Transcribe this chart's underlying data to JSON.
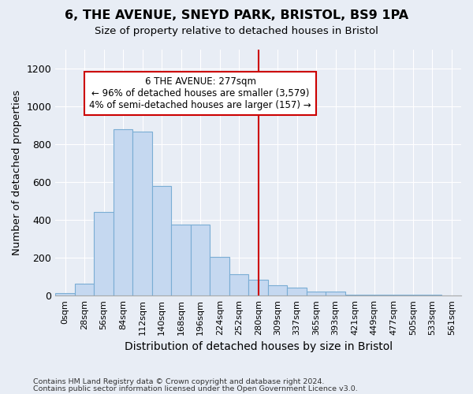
{
  "title": "6, THE AVENUE, SNEYD PARK, BRISTOL, BS9 1PA",
  "subtitle": "Size of property relative to detached houses in Bristol",
  "xlabel": "Distribution of detached houses by size in Bristol",
  "ylabel": "Number of detached properties",
  "footer_line1": "Contains HM Land Registry data © Crown copyright and database right 2024.",
  "footer_line2": "Contains public sector information licensed under the Open Government Licence v3.0.",
  "bar_labels": [
    "0sqm",
    "28sqm",
    "56sqm",
    "84sqm",
    "112sqm",
    "140sqm",
    "168sqm",
    "196sqm",
    "224sqm",
    "252sqm",
    "280sqm",
    "309sqm",
    "337sqm",
    "365sqm",
    "393sqm",
    "421sqm",
    "449sqm",
    "477sqm",
    "505sqm",
    "533sqm",
    "561sqm"
  ],
  "bar_values": [
    13,
    65,
    440,
    880,
    865,
    580,
    375,
    375,
    205,
    115,
    85,
    55,
    42,
    22,
    20,
    5,
    5,
    5,
    3,
    3,
    2
  ],
  "bar_color": "#c5d8f0",
  "bar_edge_color": "#7aadd4",
  "bg_color": "#e8edf5",
  "grid_color": "#ffffff",
  "ylim": [
    0,
    1300
  ],
  "yticks": [
    0,
    200,
    400,
    600,
    800,
    1000,
    1200
  ],
  "property_label": "6 THE AVENUE: 277sqm",
  "annotation_line1": "← 96% of detached houses are smaller (3,579)",
  "annotation_line2": "4% of semi-detached houses are larger (157) →",
  "vline_color": "#cc0000",
  "annotation_box_edge": "#cc0000",
  "vline_x_index": 10.0
}
